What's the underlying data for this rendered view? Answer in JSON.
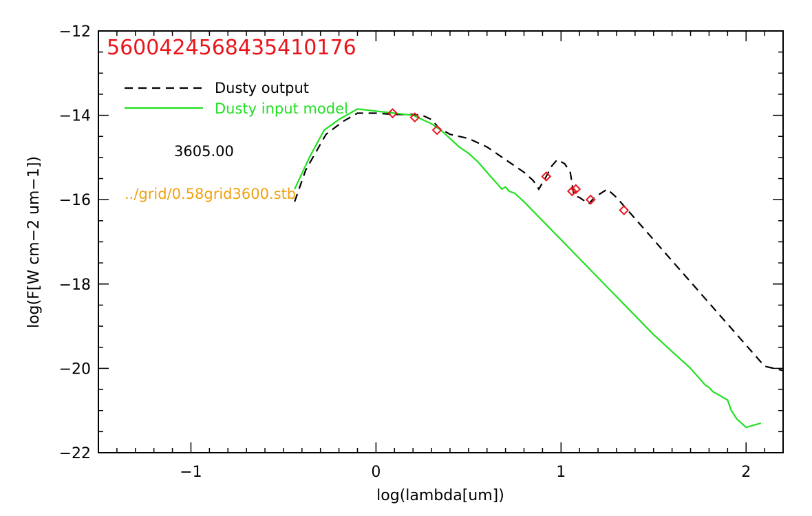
{
  "chart_data": {
    "type": "line",
    "title": "5600424568435410176",
    "xlabel": "log(lambda[um])",
    "ylabel": "log(F[W cm−2 um−1])",
    "xlim": [
      -1.5,
      2.2
    ],
    "ylim": [
      -22,
      -12
    ],
    "xticks": [
      -1,
      0,
      1,
      2
    ],
    "xtick_labels": [
      "−1",
      "0",
      "1",
      "2"
    ],
    "yticks": [
      -22,
      -20,
      -18,
      -16,
      -14,
      -12
    ],
    "ytick_labels": [
      "−22",
      "−20",
      "−18",
      "−16",
      "−14",
      "−12"
    ],
    "legend_position": "top-left",
    "annotations": {
      "temperature": "3605.00",
      "grid_file": "../grid/0.58grid3600.stb"
    },
    "colors": {
      "title": "#e8161c",
      "output": "#000000",
      "input": "#21e021",
      "observed": "#e8161c",
      "grid_file": "#f0a010"
    },
    "series": [
      {
        "name": "Dusty output",
        "style": "dashed",
        "color": "#000000",
        "x": [
          -0.44,
          -0.38,
          -0.27,
          -0.18,
          -0.1,
          0.0,
          0.1,
          0.2,
          0.25,
          0.3,
          0.34,
          0.4,
          0.5,
          0.6,
          0.7,
          0.8,
          0.85,
          0.88,
          0.92,
          0.95,
          0.98,
          1.02,
          1.05,
          1.07,
          1.1,
          1.15,
          1.18,
          1.25,
          1.3,
          1.4,
          1.5,
          1.6,
          1.7,
          1.8,
          1.9,
          2.0,
          2.1,
          2.2
        ],
        "y": [
          -16.05,
          -15.3,
          -14.45,
          -14.15,
          -13.95,
          -13.95,
          -13.98,
          -13.98,
          -14.0,
          -14.1,
          -14.3,
          -14.45,
          -14.55,
          -14.75,
          -15.05,
          -15.35,
          -15.55,
          -15.75,
          -15.45,
          -15.2,
          -15.05,
          -15.15,
          -15.35,
          -15.9,
          -15.95,
          -16.1,
          -15.95,
          -15.75,
          -15.95,
          -16.45,
          -16.95,
          -17.45,
          -17.95,
          -18.45,
          -18.95,
          -19.45,
          -19.95,
          -20.05
        ]
      },
      {
        "name": "Dusty input model",
        "style": "solid",
        "color": "#21e021",
        "x": [
          -0.44,
          -0.36,
          -0.28,
          -0.2,
          -0.1,
          0.0,
          0.1,
          0.2,
          0.3,
          0.35,
          0.4,
          0.45,
          0.5,
          0.55,
          0.6,
          0.63,
          0.65,
          0.68,
          0.7,
          0.72,
          0.75,
          0.8,
          0.9,
          1.0,
          1.1,
          1.2,
          1.3,
          1.4,
          1.5,
          1.6,
          1.7,
          1.75,
          1.78,
          1.8,
          1.82,
          1.84,
          1.86,
          1.88,
          1.9,
          1.92,
          1.95,
          2.0,
          2.08
        ],
        "y": [
          -15.75,
          -15.0,
          -14.35,
          -14.1,
          -13.85,
          -13.9,
          -13.95,
          -14.0,
          -14.2,
          -14.35,
          -14.55,
          -14.75,
          -14.9,
          -15.1,
          -15.35,
          -15.5,
          -15.6,
          -15.75,
          -15.7,
          -15.8,
          -15.85,
          -16.05,
          -16.5,
          -16.95,
          -17.4,
          -17.85,
          -18.3,
          -18.75,
          -19.2,
          -19.6,
          -20.0,
          -20.25,
          -20.4,
          -20.45,
          -20.55,
          -20.6,
          -20.65,
          -20.7,
          -20.75,
          -21.0,
          -21.2,
          -21.4,
          -21.3
        ]
      },
      {
        "name": "",
        "style": "markers",
        "marker": "diamond",
        "color": "#e8161c",
        "x": [
          0.09,
          0.21,
          0.33,
          0.92,
          1.06,
          1.08,
          1.16,
          1.34
        ],
        "y": [
          -13.95,
          -14.05,
          -14.35,
          -15.45,
          -15.8,
          -15.75,
          -16.0,
          -16.25
        ]
      }
    ]
  }
}
